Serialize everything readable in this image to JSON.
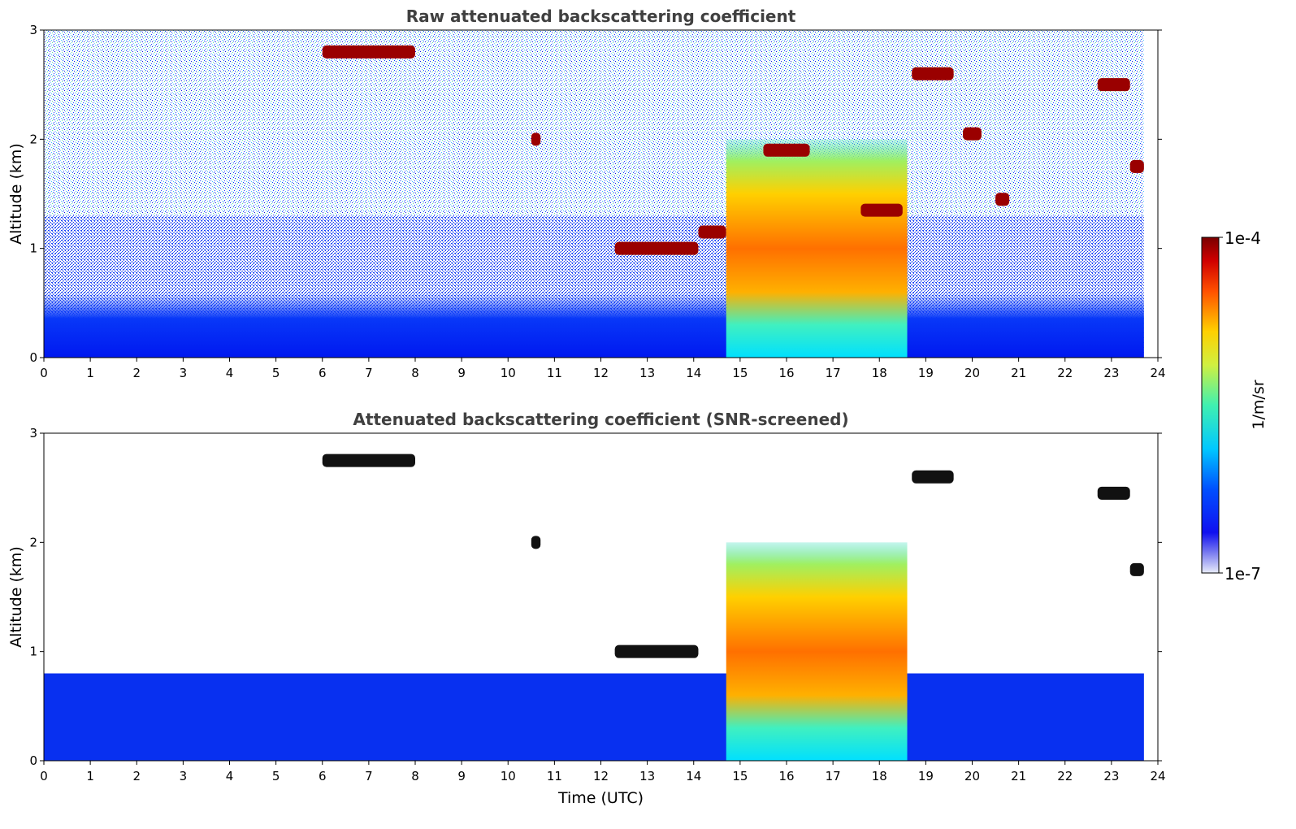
{
  "chart_data": [
    {
      "type": "heatmap",
      "title": "Raw attenuated backscattering coefficient",
      "xlabel": "",
      "ylabel": "Altitude (km)",
      "xlim": [
        0,
        24
      ],
      "ylim": [
        0,
        3
      ],
      "xticks": [
        "0",
        "1",
        "2",
        "3",
        "4",
        "5",
        "6",
        "7",
        "8",
        "9",
        "10",
        "11",
        "12",
        "13",
        "14",
        "15",
        "16",
        "17",
        "18",
        "19",
        "20",
        "21",
        "22",
        "23",
        "24"
      ],
      "yticks": [
        "0",
        "1",
        "2",
        "3"
      ],
      "screened": false,
      "features": [
        {
          "kind": "boundary_layer",
          "t0": 0,
          "t1": 23.7,
          "z0": 0,
          "z1": 0.6
        },
        {
          "kind": "cloud",
          "t0": 6.0,
          "t1": 8.0,
          "z": 2.8,
          "level": "high"
        },
        {
          "kind": "cloud",
          "t0": 10.5,
          "t1": 10.7,
          "z": 2.0,
          "level": "high"
        },
        {
          "kind": "cloud",
          "t0": 12.3,
          "t1": 14.1,
          "z": 1.0,
          "level": "high"
        },
        {
          "kind": "cloud",
          "t0": 14.1,
          "t1": 14.7,
          "z": 1.15,
          "level": "high"
        },
        {
          "kind": "precip",
          "t0": 14.7,
          "t1": 18.6,
          "z0": 0,
          "z1": 2.0,
          "level": "medium"
        },
        {
          "kind": "cloud",
          "t0": 15.5,
          "t1": 16.5,
          "z": 1.9,
          "level": "high"
        },
        {
          "kind": "cloud",
          "t0": 17.6,
          "t1": 18.5,
          "z": 1.35,
          "level": "high"
        },
        {
          "kind": "cloud",
          "t0": 18.7,
          "t1": 19.6,
          "z": 2.6,
          "level": "high"
        },
        {
          "kind": "cloud",
          "t0": 19.8,
          "t1": 20.2,
          "z": 2.05,
          "level": "high"
        },
        {
          "kind": "cloud",
          "t0": 20.5,
          "t1": 20.8,
          "z": 1.45,
          "level": "high"
        },
        {
          "kind": "cloud",
          "t0": 22.7,
          "t1": 23.4,
          "z": 2.5,
          "level": "high"
        },
        {
          "kind": "cloud",
          "t0": 23.4,
          "t1": 23.7,
          "z": 1.75,
          "level": "high"
        }
      ]
    },
    {
      "type": "heatmap",
      "title": "Attenuated backscattering coefficient (SNR-screened)",
      "xlabel": "Time (UTC)",
      "ylabel": "Altitude (km)",
      "xlim": [
        0,
        24
      ],
      "ylim": [
        0,
        3
      ],
      "xticks": [
        "0",
        "1",
        "2",
        "3",
        "4",
        "5",
        "6",
        "7",
        "8",
        "9",
        "10",
        "11",
        "12",
        "13",
        "14",
        "15",
        "16",
        "17",
        "18",
        "19",
        "20",
        "21",
        "22",
        "23",
        "24"
      ],
      "yticks": [
        "0",
        "1",
        "2",
        "3"
      ],
      "screened": true,
      "features": [
        {
          "kind": "boundary_layer",
          "t0": 0,
          "t1": 23.7,
          "z0": 0,
          "z1": 0.8
        },
        {
          "kind": "cloud",
          "t0": 6.0,
          "t1": 8.0,
          "z": 2.75,
          "level": "saturated"
        },
        {
          "kind": "cloud",
          "t0": 10.5,
          "t1": 10.7,
          "z": 2.0,
          "level": "saturated"
        },
        {
          "kind": "cloud",
          "t0": 12.3,
          "t1": 14.1,
          "z": 1.0,
          "level": "saturated"
        },
        {
          "kind": "precip",
          "t0": 14.7,
          "t1": 18.6,
          "z0": 0,
          "z1": 2.0,
          "level": "medium"
        },
        {
          "kind": "cloud",
          "t0": 18.7,
          "t1": 19.6,
          "z": 2.6,
          "level": "saturated"
        },
        {
          "kind": "cloud",
          "t0": 22.7,
          "t1": 23.4,
          "z": 2.45,
          "level": "saturated"
        },
        {
          "kind": "cloud",
          "t0": 23.4,
          "t1": 23.7,
          "z": 1.75,
          "level": "saturated"
        }
      ]
    }
  ],
  "colorbar": {
    "label": "1/m/sr",
    "min_label": "1e-7",
    "max_label": "1e-4",
    "colormap": "jet"
  }
}
